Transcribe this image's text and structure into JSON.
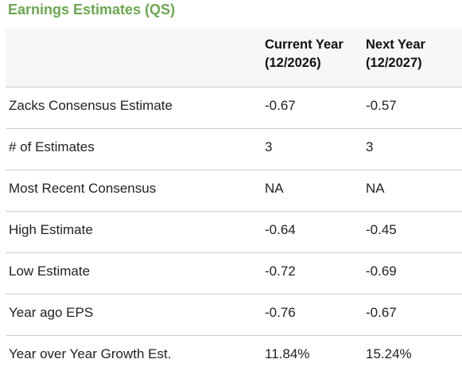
{
  "title": "Earnings Estimates (QS)",
  "columns": {
    "current_year_line1": "Current Year",
    "current_year_line2": "(12/2026)",
    "next_year_line1": "Next Year",
    "next_year_line2": "(12/2027)"
  },
  "rows": [
    {
      "label": "Zacks Consensus Estimate",
      "current": "-0.67",
      "next": "-0.57"
    },
    {
      "label": "# of Estimates",
      "current": "3",
      "next": "3"
    },
    {
      "label": "Most Recent Consensus",
      "current": "NA",
      "next": "NA"
    },
    {
      "label": "High Estimate",
      "current": "-0.64",
      "next": "-0.45"
    },
    {
      "label": "Low Estimate",
      "current": "-0.72",
      "next": "-0.69"
    },
    {
      "label": "Year ago EPS",
      "current": "-0.76",
      "next": "-0.67"
    },
    {
      "label": "Year over Year Growth Est.",
      "current": "11.84%",
      "next": "15.24%"
    }
  ],
  "colors": {
    "title": "#6aa84f",
    "header_bg": "#f7f7f7",
    "divider": "#cfcfcf"
  }
}
